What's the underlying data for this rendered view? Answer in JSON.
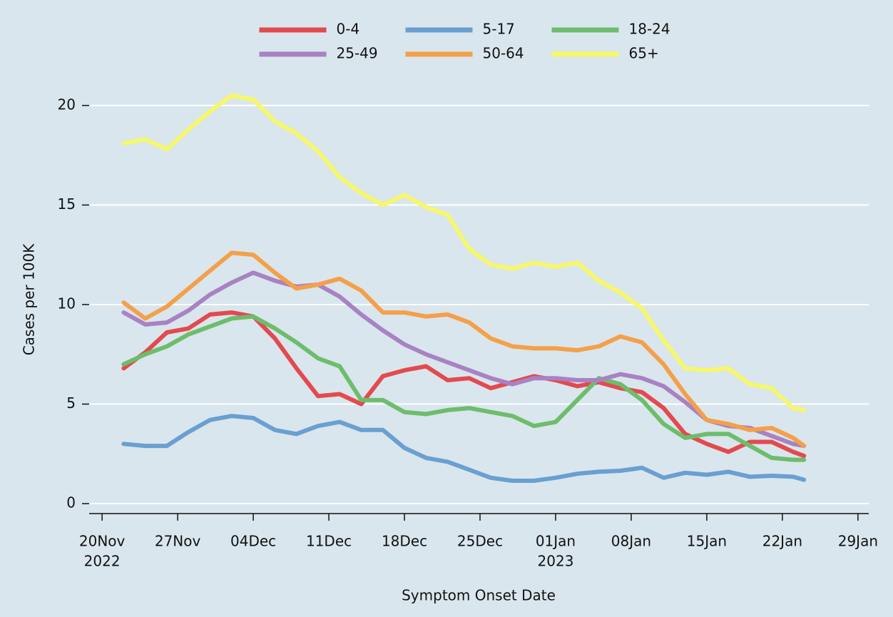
{
  "chart_data": {
    "type": "line",
    "xlabel": "Symptom Onset Date",
    "ylabel": "Cases per 100K",
    "x": [
      "2022-11-22",
      "2022-11-24",
      "2022-11-26",
      "2022-11-28",
      "2022-11-30",
      "2022-12-02",
      "2022-12-04",
      "2022-12-06",
      "2022-12-08",
      "2022-12-10",
      "2022-12-12",
      "2022-12-14",
      "2022-12-16",
      "2022-12-18",
      "2022-12-20",
      "2022-12-22",
      "2022-12-24",
      "2022-12-26",
      "2022-12-28",
      "2022-12-30",
      "2023-01-01",
      "2023-01-03",
      "2023-01-05",
      "2023-01-07",
      "2023-01-09",
      "2023-01-11",
      "2023-01-13",
      "2023-01-15",
      "2023-01-17",
      "2023-01-19",
      "2023-01-21",
      "2023-01-23",
      "2023-01-24"
    ],
    "series": [
      {
        "name": "0-4",
        "color": "#e34a4f",
        "values": [
          6.8,
          7.6,
          8.6,
          8.8,
          9.5,
          9.6,
          9.4,
          8.3,
          6.8,
          5.4,
          5.5,
          5.0,
          6.4,
          6.7,
          6.9,
          6.2,
          6.3,
          5.8,
          6.1,
          6.4,
          6.2,
          5.9,
          6.1,
          5.8,
          5.6,
          4.8,
          3.5,
          3.0,
          2.6,
          3.1,
          3.1,
          2.6,
          2.4
        ]
      },
      {
        "name": "5-17",
        "color": "#6a9fd1",
        "values": [
          3.0,
          2.9,
          2.9,
          3.6,
          4.2,
          4.4,
          4.3,
          3.7,
          3.5,
          3.9,
          4.1,
          3.7,
          3.7,
          2.8,
          2.3,
          2.1,
          1.7,
          1.3,
          1.15,
          1.15,
          1.3,
          1.5,
          1.6,
          1.65,
          1.8,
          1.3,
          1.55,
          1.45,
          1.6,
          1.35,
          1.4,
          1.35,
          1.2
        ]
      },
      {
        "name": "18-24",
        "color": "#6dbd6b",
        "values": [
          7.0,
          7.5,
          7.9,
          8.5,
          8.9,
          9.3,
          9.4,
          8.8,
          8.1,
          7.3,
          6.9,
          5.2,
          5.2,
          4.6,
          4.5,
          4.7,
          4.8,
          4.6,
          4.4,
          3.9,
          4.1,
          5.2,
          6.3,
          6.0,
          5.2,
          4.0,
          3.3,
          3.5,
          3.5,
          2.9,
          2.3,
          2.2,
          2.2
        ]
      },
      {
        "name": "25-49",
        "color": "#a882c3",
        "values": [
          9.6,
          9.0,
          9.1,
          9.7,
          10.5,
          11.1,
          11.6,
          11.2,
          10.9,
          11.0,
          10.4,
          9.5,
          8.7,
          8.0,
          7.5,
          7.1,
          6.7,
          6.3,
          6.0,
          6.3,
          6.3,
          6.2,
          6.2,
          6.5,
          6.3,
          5.9,
          5.1,
          4.2,
          3.9,
          3.8,
          3.4,
          3.0,
          2.9
        ]
      },
      {
        "name": "50-64",
        "color": "#f4a04a",
        "values": [
          10.1,
          9.3,
          9.9,
          10.8,
          11.7,
          12.6,
          12.5,
          11.6,
          10.8,
          11.0,
          11.3,
          10.7,
          9.6,
          9.6,
          9.4,
          9.5,
          9.1,
          8.3,
          7.9,
          7.8,
          7.8,
          7.7,
          7.9,
          8.4,
          8.1,
          7.0,
          5.5,
          4.2,
          4.0,
          3.7,
          3.8,
          3.3,
          2.9
        ]
      },
      {
        "name": "65+",
        "color": "#f7f76a",
        "values": [
          18.1,
          18.3,
          17.8,
          18.8,
          19.7,
          20.5,
          20.3,
          19.2,
          18.6,
          17.7,
          16.4,
          15.6,
          15.0,
          15.5,
          14.9,
          14.5,
          12.8,
          12.0,
          11.8,
          12.1,
          11.9,
          12.1,
          11.2,
          10.6,
          9.8,
          8.2,
          6.8,
          6.7,
          6.8,
          6.0,
          5.8,
          4.8,
          4.7
        ]
      }
    ],
    "xlim": [
      "2022-11-19",
      "2023-01-30"
    ],
    "xticks": [
      {
        "value": "2022-11-20",
        "label": "20Nov",
        "sublabel": "2022"
      },
      {
        "value": "2022-11-27",
        "label": "27Nov"
      },
      {
        "value": "2022-12-04",
        "label": "04Dec"
      },
      {
        "value": "2022-12-11",
        "label": "11Dec"
      },
      {
        "value": "2022-12-18",
        "label": "18Dec"
      },
      {
        "value": "2022-12-25",
        "label": "25Dec"
      },
      {
        "value": "2023-01-01",
        "label": "01Jan",
        "sublabel": "2023"
      },
      {
        "value": "2023-01-08",
        "label": "08Jan"
      },
      {
        "value": "2023-01-15",
        "label": "15Jan"
      },
      {
        "value": "2023-01-22",
        "label": "22Jan"
      },
      {
        "value": "2023-01-29",
        "label": "29Jan"
      }
    ],
    "ylim": [
      -0.5,
      21.5
    ],
    "yticks": [
      0,
      5,
      10,
      15,
      20
    ],
    "grid": true,
    "legend": "top-center"
  }
}
